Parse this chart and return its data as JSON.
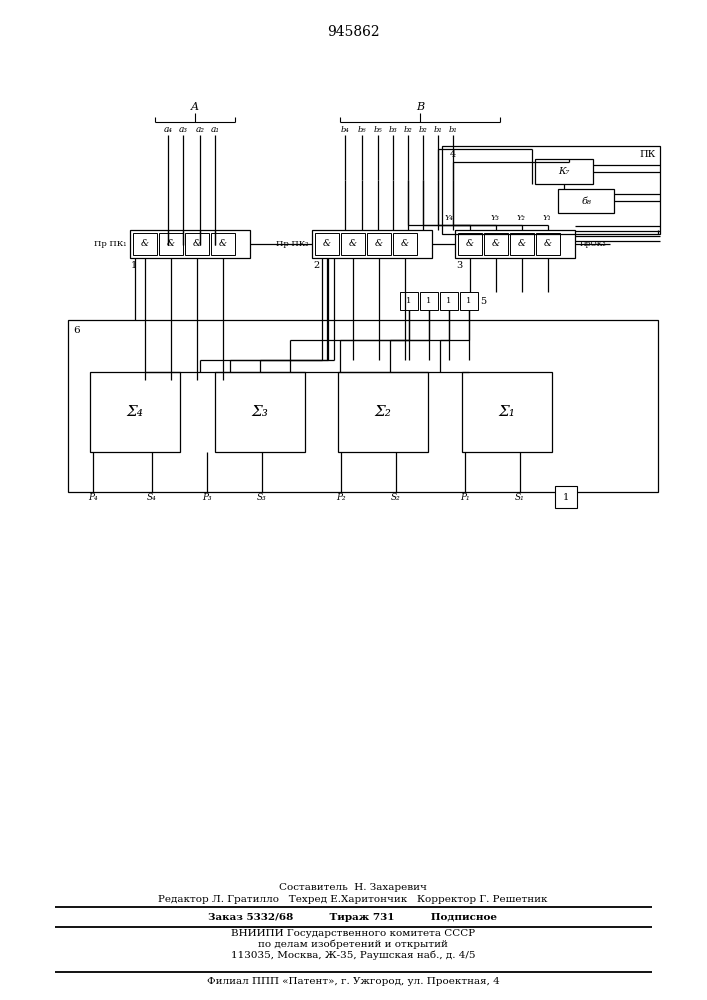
{
  "title": "945862",
  "bg": "#ffffff",
  "lc": "#000000",
  "diagram": {
    "a_labels": [
      "a₄",
      "a₃",
      "a₂",
      "a₁"
    ],
    "b_labels": [
      "b₄",
      "b₆",
      "b₅",
      "b₃",
      "b₂",
      "b₂",
      "b₁",
      "b₁"
    ],
    "sigma_labels": [
      "Σ₄",
      "Σ₃",
      "Σ₂",
      "Σ₁"
    ],
    "bot_labels": [
      "P₄",
      "S₄",
      "P₃",
      "S₃",
      "P₂",
      "S₂",
      "P₁",
      "S₁"
    ]
  },
  "footer": [
    {
      "t": "Составитель  Н. Захаревич",
      "bold": false
    },
    {
      "t": "Редактор Л. Гратилло   Техред Е.Харитончик   Корректор Г. Решетник",
      "bold": false
    },
    {
      "t": "Заказ 5332/68          Тираж 731          Подписное",
      "bold": true
    },
    {
      "t": "ВНИИПИ Государственного комитета СССР",
      "bold": false
    },
    {
      "t": "по делам изобретений и открытий",
      "bold": false
    },
    {
      "t": "113035, Москва, Ж-35, Раушская наб., д. 4/5",
      "bold": false
    },
    {
      "t": "Филиал ППП «Патент», г. Ужгород, ул. Проектная, 4",
      "bold": false
    }
  ]
}
